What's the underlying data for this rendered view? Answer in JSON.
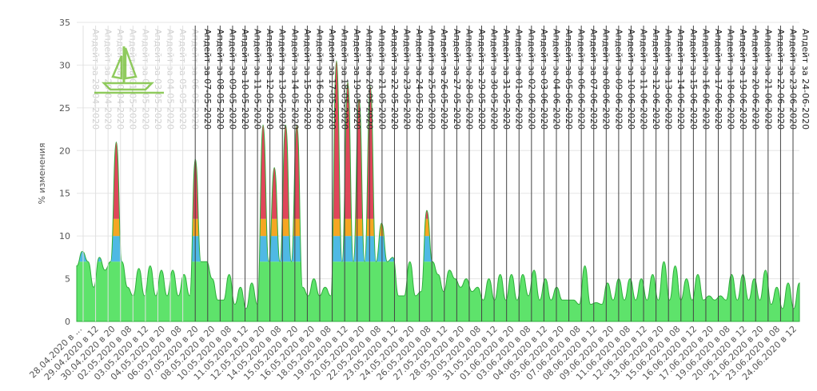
{
  "chart_data": {
    "type": "area",
    "ylabel": "% изменения",
    "ylim": [
      0,
      35
    ],
    "y_ticks": [
      0,
      5,
      10,
      15,
      20,
      25,
      30,
      35
    ],
    "grid": true,
    "thresholds": [
      {
        "from": 0,
        "to": 7,
        "color": "#5ee36b"
      },
      {
        "from": 7,
        "to": 10,
        "color": "#4fb9e4"
      },
      {
        "from": 10,
        "to": 12,
        "color": "#f5a623"
      },
      {
        "from": 12,
        "to": 35,
        "color": "#e0465a"
      }
    ],
    "x_tick_labels": [
      "28.04.2020 в ...",
      "29.04.2020 в 12",
      "30.04.2020 в 20",
      "02.05.2020 в 08",
      "03.05.2020 в 12",
      "04.05.2020 в 20",
      "06.05.2020 в 08",
      "07.05.2020 в 20",
      "08.05.2020 в 20",
      "10.05.2020 в 08",
      "11.05.2020 в 12",
      "12.05.2020 в 20",
      "14.05.2020 в 08",
      "15.05.2020 в 20",
      "16.05.2020 в 20",
      "18.05.2020 в 08",
      "19.05.2020 в 12",
      "20.05.2020 в 20",
      "22.05.2020 в 08",
      "23.05.2020 в 12",
      "24.05.2020 в 20",
      "26.05.2020 в 08",
      "27.05.2020 в 12",
      "28.05.2020 в 20",
      "30.05.2020 в 08",
      "31.05.2020 в 12",
      "01.06.2020 в 20",
      "03.06.2020 в 08",
      "04.06.2020 в 12",
      "05.06.2020 в 20",
      "07.06.2020 в 08",
      "08.06.2020 в 12",
      "09.06.2020 в 20",
      "11.06.2020 в 08",
      "12.06.2020 в 12",
      "13.06.2020 в 20",
      "15.06.2020 в 08",
      "16.06.2020 в 12",
      "17.06.2020 в 20",
      "19.06.2020 в 08",
      "20.06.2020 в 12",
      "21.06.2020 в 20",
      "23.06.2020 в 08",
      "24.06.2020 в 12"
    ],
    "update_markers": [
      {
        "label": "Апдейт за 28-04-2020",
        "faded": true
      },
      {
        "label": "Апдейт за 29-04-2020",
        "faded": true
      },
      {
        "label": "Апдейт за 30-04-2020",
        "faded": true
      },
      {
        "label": "Апдейт за 01-05-2020",
        "faded": true
      },
      {
        "label": "Апдейт за 02-05-2020",
        "faded": true
      },
      {
        "label": "Апдейт за 03-05-2020",
        "faded": true
      },
      {
        "label": "Апдейт за 04-05-2020",
        "faded": true
      },
      {
        "label": "Апдейт за 05-05-2020",
        "faded": true
      },
      {
        "label": "Апдейт за 06-05-2020",
        "faded": true
      },
      {
        "label": "Апдейт за 07-05-2020",
        "faded": false
      },
      {
        "label": "Апдейт за 08-05-2020",
        "faded": false
      },
      {
        "label": "Апдейт за 09-05-2020",
        "faded": false
      },
      {
        "label": "Апдейт за 10-05-2020",
        "faded": false
      },
      {
        "label": "Апдейт за 11-05-2020",
        "faded": false
      },
      {
        "label": "Апдейт за 12-05-2020",
        "faded": false
      },
      {
        "label": "Апдейт за 13-05-2020",
        "faded": false
      },
      {
        "label": "Апдейт за 14-05-2020",
        "faded": false
      },
      {
        "label": "Апдейт за 15-05-2020",
        "faded": false
      },
      {
        "label": "Апдейт за 16-05-2020",
        "faded": false
      },
      {
        "label": "Апдейт за 17-05-2020",
        "faded": false
      },
      {
        "label": "Апдейт за 18-05-2020",
        "faded": false
      },
      {
        "label": "Апдейт за 19-05-2020",
        "faded": false
      },
      {
        "label": "Апдейт за 20-05-2020",
        "faded": false
      },
      {
        "label": "Апдейт за 21-05-2020",
        "faded": false
      },
      {
        "label": "Апдейт за 22-05-2020",
        "faded": false
      },
      {
        "label": "Апдейт за 23-05-2020",
        "faded": false
      },
      {
        "label": "Апдейт за 24-05-2020",
        "faded": false
      },
      {
        "label": "Апдейт за 25-05-2020",
        "faded": false
      },
      {
        "label": "Апдейт за 26-05-2020",
        "faded": false
      },
      {
        "label": "Апдейт за 27-05-2020",
        "faded": false
      },
      {
        "label": "Апдейт за 28-05-2020",
        "faded": false
      },
      {
        "label": "Апдейт за 29-05-2020",
        "faded": false
      },
      {
        "label": "Апдейт за 30-05-2020",
        "faded": false
      },
      {
        "label": "Апдейт за 31-05-2020",
        "faded": false
      },
      {
        "label": "Апдейт за 01-06-2020",
        "faded": false
      },
      {
        "label": "Апдейт за 02-06-2020",
        "faded": false
      },
      {
        "label": "Апдейт за 03-06-2020",
        "faded": false
      },
      {
        "label": "Апдейт за 04-06-2020",
        "faded": false
      },
      {
        "label": "Апдейт за 05-06-2020",
        "faded": false
      },
      {
        "label": "Апдейт за 06-06-2020",
        "faded": false
      },
      {
        "label": "Апдейт за 07-06-2020",
        "faded": false
      },
      {
        "label": "Апдейт за 08-06-2020",
        "faded": false
      },
      {
        "label": "Апдейт за 09-06-2020",
        "faded": false
      },
      {
        "label": "Апдейт за 10-06-2020",
        "faded": false
      },
      {
        "label": "Апдейт за 11-06-2020",
        "faded": false
      },
      {
        "label": "Апдейт за 12-06-2020",
        "faded": false
      },
      {
        "label": "Апдейт за 13-06-2020",
        "faded": false
      },
      {
        "label": "Апдейт за 14-06-2020",
        "faded": false
      },
      {
        "label": "Апдейт за 15-06-2020",
        "faded": false
      },
      {
        "label": "Апдейт за 16-06-2020",
        "faded": false
      },
      {
        "label": "Апдейт за 17-06-2020",
        "faded": false
      },
      {
        "label": "Апдейт за 18-06-2020",
        "faded": false
      },
      {
        "label": "Апдейт за 19-06-2020",
        "faded": false
      },
      {
        "label": "Апдейт за 20-06-2020",
        "faded": false
      },
      {
        "label": "Апдейт за 21-06-2020",
        "faded": false
      },
      {
        "label": "Апдейт за 22-06-2020",
        "faded": false
      },
      {
        "label": "Апдейт за 23-06-2020",
        "faded": false
      },
      {
        "label": "Апдейт за 24-06-2020",
        "faded": false
      }
    ],
    "series": [
      {
        "values": [
          6.5,
          8.2,
          7.0,
          4.0,
          7.5,
          6.0,
          7.0,
          21.0,
          7.0,
          4.0,
          3.0,
          6.2,
          3.0,
          6.5,
          3.0,
          6.0,
          3.0,
          6.0,
          3.0,
          5.5,
          3.0,
          19.0,
          7.0,
          7.0,
          5.0,
          2.5,
          2.5,
          5.5,
          2.0,
          4.0,
          1.5,
          4.5,
          2.0,
          23.0,
          7.0,
          18.0,
          7.0,
          23.0,
          7.0,
          23.0,
          4.0,
          3.0,
          5.0,
          3.0,
          4.0,
          3.0,
          30.5,
          7.0,
          28.0,
          7.0,
          26.0,
          7.0,
          27.5,
          7.0,
          11.5,
          7.0,
          7.5,
          3.0,
          3.0,
          7.0,
          3.0,
          3.5,
          13.0,
          7.0,
          5.5,
          3.5,
          6.0,
          5.0,
          4.0,
          5.0,
          3.5,
          4.0,
          2.5,
          5.0,
          2.5,
          5.5,
          2.5,
          5.5,
          2.5,
          5.5,
          3.0,
          6.0,
          2.5,
          5.0,
          2.5,
          4.0,
          2.5,
          2.5,
          2.5,
          2.0,
          6.5,
          2.0,
          2.2,
          2.0,
          4.5,
          2.5,
          5.0,
          2.5,
          5.0,
          2.5,
          5.0,
          2.5,
          5.5,
          2.5,
          7.0,
          2.5,
          6.5,
          2.5,
          5.0,
          2.5,
          5.5,
          2.5,
          3.0,
          2.5,
          3.0,
          2.5,
          5.5,
          2.5,
          5.5,
          2.5,
          5.0,
          2.5,
          6.0,
          2.0,
          4.0,
          1.5,
          4.5,
          1.5,
          4.5
        ]
      }
    ]
  }
}
